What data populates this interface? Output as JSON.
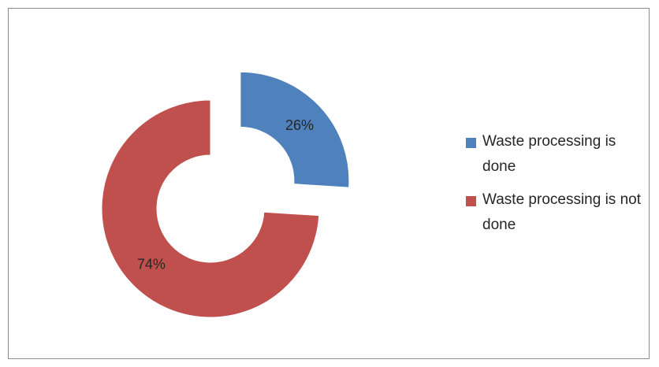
{
  "chart_data": {
    "type": "donut",
    "categories": [
      "Waste processing is done",
      "Waste processing is not done"
    ],
    "values": [
      26,
      74
    ],
    "data_labels": [
      "26%",
      "74%"
    ],
    "colors": [
      "#4f81bd",
      "#c0504d"
    ],
    "exploded_slice": "Waste processing is done",
    "legend_position": "right"
  },
  "legend": {
    "items": [
      {
        "label": "Waste processing is done",
        "color": "#4f81bd"
      },
      {
        "label": "Waste processing is not done",
        "color": "#c0504d"
      }
    ]
  }
}
